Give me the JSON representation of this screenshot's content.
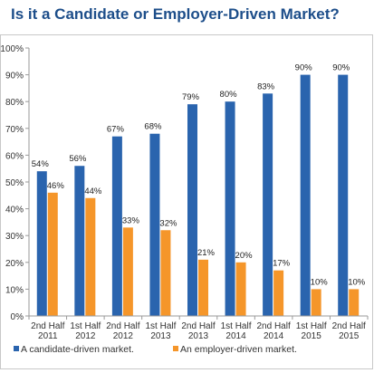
{
  "chart_data": {
    "type": "bar",
    "title": "Is it a Candidate or Employer-Driven Market?",
    "categories": [
      [
        "2nd Half",
        "2011"
      ],
      [
        "1st Half",
        "2012"
      ],
      [
        "2nd Half",
        "2012"
      ],
      [
        "1st Half",
        "2013"
      ],
      [
        "2nd Half",
        "2013"
      ],
      [
        "1st Half",
        "2014"
      ],
      [
        "2nd Half",
        "2014"
      ],
      [
        "1st Half",
        "2015"
      ],
      [
        "2nd Half",
        "2015"
      ]
    ],
    "series": [
      {
        "name": "A candidate-driven market.",
        "color": "#2a64ae",
        "values": [
          54,
          56,
          67,
          68,
          79,
          80,
          83,
          90,
          90
        ],
        "labels": [
          "54%",
          "56%",
          "67%",
          "68%",
          "79%",
          "80%",
          "83%",
          "90%",
          "90%"
        ]
      },
      {
        "name": "An employer-driven market.",
        "color": "#f5962a",
        "values": [
          46,
          44,
          33,
          32,
          21,
          20,
          17,
          10,
          10
        ],
        "labels": [
          "46%",
          "44%",
          "33%",
          "32%",
          "21%",
          "20%",
          "17%",
          "10%",
          "10%"
        ]
      }
    ],
    "y_ticks": [
      "0%",
      "10%",
      "20%",
      "30%",
      "40%",
      "50%",
      "60%",
      "70%",
      "80%",
      "90%",
      "100%"
    ],
    "ylim": [
      0,
      100
    ],
    "grid": false,
    "legend_position": "bottom"
  }
}
